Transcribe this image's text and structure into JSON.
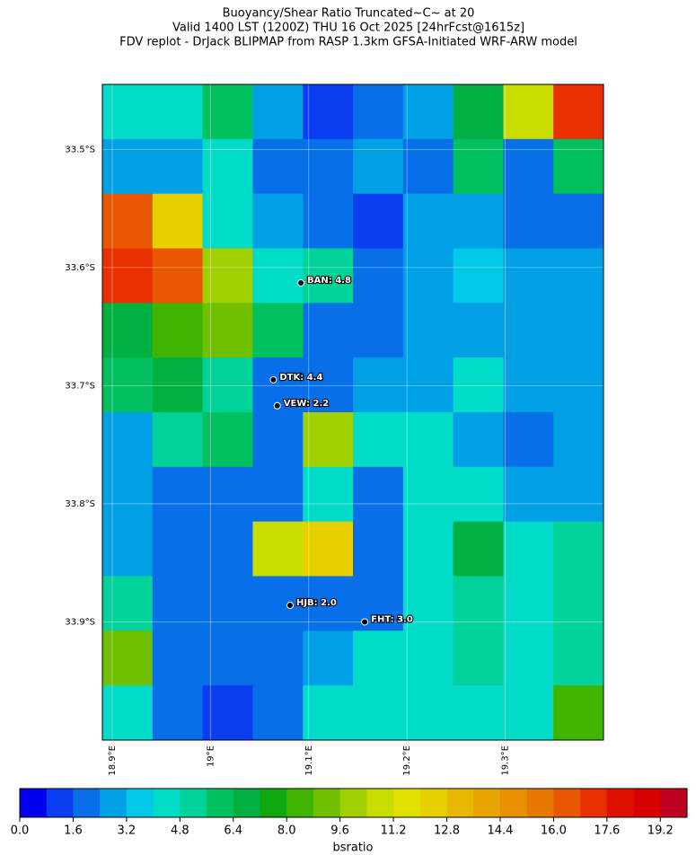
{
  "header": {
    "title": [
      "Buoyancy/Shear Ratio Truncated~C~    at 20",
      "Valid 1400 LST (1200Z) THU 16 Oct 2025 [24hrFcst@1615z]",
      "FDV replot - DrJack BLIPMAP from RASP 1.3km GFSA-Initiated WRF-ARW model"
    ]
  },
  "map": {
    "xlim": [
      18.89,
      19.4
    ],
    "ylim": [
      -34.0,
      -33.445
    ],
    "xticks": [
      {
        "value": 18.9,
        "label": "18.9°E"
      },
      {
        "value": 19.0,
        "label": "19°E"
      },
      {
        "value": 19.1,
        "label": "19.1°E"
      },
      {
        "value": 19.2,
        "label": "19.2°E"
      },
      {
        "value": 19.3,
        "label": "19.3°E"
      }
    ],
    "yticks": [
      {
        "value": -33.5,
        "label": "33.5°S"
      },
      {
        "value": -33.6,
        "label": "33.6°S"
      },
      {
        "value": -33.7,
        "label": "33.7°S"
      },
      {
        "value": -33.8,
        "label": "33.8°S"
      },
      {
        "value": -33.9,
        "label": "33.9°S"
      }
    ],
    "grid": true,
    "values": [
      [
        4,
        4,
        6,
        2.5,
        1.5,
        2,
        3,
        7,
        11,
        17
      ],
      [
        3,
        3,
        4,
        2,
        2,
        3,
        2,
        6,
        2,
        6
      ],
      [
        16,
        12,
        4.5,
        2.5,
        2,
        1.5,
        2.5,
        3,
        2,
        2
      ],
      [
        17,
        16,
        10,
        4.5,
        5,
        2,
        3,
        3.5,
        3,
        2.5
      ],
      [
        7,
        8,
        9,
        6,
        2,
        2,
        3,
        3,
        3,
        3
      ],
      [
        6,
        7,
        5,
        2,
        2,
        3,
        3,
        4,
        3,
        2.5
      ],
      [
        2.5,
        5,
        6,
        2,
        10,
        4,
        4,
        3,
        2,
        2.5
      ],
      [
        3,
        2,
        2,
        2,
        4,
        2,
        4,
        4,
        3,
        3
      ],
      [
        3,
        2,
        2,
        11,
        12,
        2,
        4,
        7,
        4,
        5
      ],
      [
        5,
        2,
        2,
        2,
        2,
        2,
        4,
        5,
        4,
        5.5
      ],
      [
        9,
        2,
        2,
        2,
        3,
        4,
        4.5,
        5,
        4.5,
        5
      ],
      [
        4,
        2,
        1.5,
        2,
        4,
        4.5,
        4,
        4.5,
        4,
        8
      ]
    ],
    "stations": [
      {
        "label": "BAN: 4.8",
        "lon": 19.092,
        "lat": -33.613
      },
      {
        "label": "DTK: 4.4",
        "lon": 19.064,
        "lat": -33.695
      },
      {
        "label": "VEW: 2.2",
        "lon": 19.068,
        "lat": -33.717
      },
      {
        "label": "HJB: 2.0",
        "lon": 19.081,
        "lat": -33.886
      },
      {
        "label": "FHT: 3.0",
        "lon": 19.157,
        "lat": -33.9
      }
    ]
  },
  "colorbar": {
    "label": "bsratio",
    "lim": [
      0,
      20
    ],
    "ticks": [
      {
        "value": 0,
        "label": "0.0"
      },
      1.6,
      3.2,
      4.8,
      6.4,
      {
        "value": 8,
        "label": "8.0"
      },
      9.6,
      11.2,
      12.8,
      14.4,
      {
        "value": 16,
        "label": "16.0"
      },
      17.6,
      19.2
    ],
    "colors": [
      "#0000ee",
      "#0a3ef0",
      "#0770e8",
      "#00a0e6",
      "#00c8e6",
      "#00dcc8",
      "#00d29a",
      "#00c060",
      "#00b040",
      "#10a810",
      "#40b400",
      "#70c000",
      "#a0d000",
      "#c8dc00",
      "#e0e000",
      "#e8d000",
      "#e8b800",
      "#e8a400",
      "#e89000",
      "#e87800",
      "#e85800",
      "#e83000",
      "#e01000",
      "#d80000",
      "#c00020"
    ]
  }
}
